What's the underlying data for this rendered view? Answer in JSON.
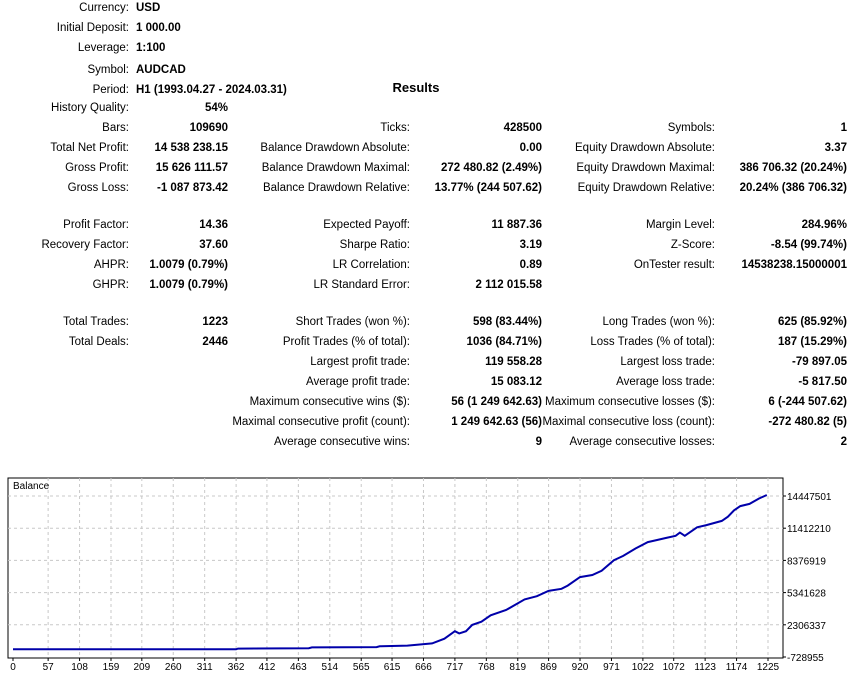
{
  "header": [
    {
      "label": "Currency:",
      "value": "USD"
    },
    {
      "label": "Initial Deposit:",
      "value": "1 000.00"
    },
    {
      "label": "Leverage:",
      "value": "1:100"
    },
    {
      "label": "Symbol:",
      "value": "AUDCAD"
    },
    {
      "label": "Period:",
      "value": "H1 (1993.04.27 - 2024.03.31)"
    }
  ],
  "results_title": "Results",
  "history_quality": {
    "label": "History Quality:",
    "value": "54%"
  },
  "rows": [
    [
      [
        "Bars:",
        "109690"
      ],
      [
        "Ticks:",
        "428500"
      ],
      [
        "Symbols:",
        "1"
      ]
    ],
    [
      [
        "Total Net Profit:",
        "14 538 238.15"
      ],
      [
        "Balance Drawdown Absolute:",
        "0.00"
      ],
      [
        "Equity Drawdown Absolute:",
        "3.37"
      ]
    ],
    [
      [
        "Gross Profit:",
        "15 626 111.57"
      ],
      [
        "Balance Drawdown Maximal:",
        "272 480.82 (2.49%)"
      ],
      [
        "Equity Drawdown Maximal:",
        "386 706.32 (20.24%)"
      ]
    ],
    [
      [
        "Gross Loss:",
        "-1 087 873.42"
      ],
      [
        "Balance Drawdown Relative:",
        "13.77% (244 507.62)"
      ],
      [
        "Equity Drawdown Relative:",
        "20.24% (386 706.32)"
      ]
    ],
    [
      [
        "Profit Factor:",
        "14.36"
      ],
      [
        "Expected Payoff:",
        "11 887.36"
      ],
      [
        "Margin Level:",
        "284.96%"
      ]
    ],
    [
      [
        "Recovery Factor:",
        "37.60"
      ],
      [
        "Sharpe Ratio:",
        "3.19"
      ],
      [
        "Z-Score:",
        "-8.54 (99.74%)"
      ]
    ],
    [
      [
        "AHPR:",
        "1.0079 (0.79%)"
      ],
      [
        "LR Correlation:",
        "0.89"
      ],
      [
        "OnTester result:",
        "14538238.15000001"
      ]
    ],
    [
      [
        "GHPR:",
        "1.0079 (0.79%)"
      ],
      [
        "LR Standard Error:",
        "2 112 015.58"
      ],
      [
        "",
        ""
      ]
    ],
    [
      [
        "Total Trades:",
        "1223"
      ],
      [
        "Short Trades (won %):",
        "598 (83.44%)"
      ],
      [
        "Long Trades (won %):",
        "625 (85.92%)"
      ]
    ],
    [
      [
        "Total Deals:",
        "2446"
      ],
      [
        "Profit Trades (% of total):",
        "1036 (84.71%)"
      ],
      [
        "Loss Trades (% of total):",
        "187 (15.29%)"
      ]
    ],
    [
      [
        "",
        ""
      ],
      [
        "Largest profit trade:",
        "119 558.28"
      ],
      [
        "Largest loss trade:",
        "-79 897.05"
      ]
    ],
    [
      [
        "",
        ""
      ],
      [
        "Average profit trade:",
        "15 083.12"
      ],
      [
        "Average loss trade:",
        "-5 817.50"
      ]
    ],
    [
      [
        "",
        ""
      ],
      [
        "Maximum consecutive wins ($):",
        "56 (1 249 642.63)"
      ],
      [
        "Maximum consecutive losses ($):",
        "6 (-244 507.62)"
      ]
    ],
    [
      [
        "",
        ""
      ],
      [
        "Maximal consecutive profit (count):",
        "1 249 642.63 (56)"
      ],
      [
        "Maximal consecutive loss (count):",
        "-272 480.82 (5)"
      ]
    ],
    [
      [
        "",
        ""
      ],
      [
        "Average consecutive wins:",
        "9"
      ],
      [
        "Average consecutive losses:",
        "2"
      ]
    ]
  ],
  "chart_data": {
    "type": "line",
    "title": "Balance",
    "line_color": "#0000AA",
    "grid": true,
    "x_ticks": [
      "0",
      "57",
      "108",
      "159",
      "209",
      "260",
      "311",
      "362",
      "412",
      "463",
      "514",
      "565",
      "615",
      "666",
      "717",
      "768",
      "819",
      "869",
      "920",
      "971",
      "1022",
      "1072",
      "1123",
      "1174",
      "1225"
    ],
    "y_ticks": [
      "14447501",
      "11412210",
      "8376919",
      "5341628",
      "2306337",
      "-728955"
    ],
    "xlim": [
      0,
      1225
    ],
    "ylim": [
      -728955,
      14447501
    ],
    "series": [
      {
        "x": [
          0,
          362,
          365,
          480,
          485,
          590,
          595,
          640,
          660,
          680,
          700,
          717,
          724,
          735,
          745,
          760,
          775,
          800,
          830,
          850,
          869,
          890,
          900,
          920,
          940,
          955,
          975,
          990,
          1010,
          1030,
          1045,
          1060,
          1075,
          1082,
          1090,
          1110,
          1125,
          1150,
          1160,
          1170,
          1180,
          1195,
          1210,
          1223
        ],
        "y": [
          1000,
          1000,
          60000,
          100000,
          180000,
          200000,
          280000,
          350000,
          450000,
          550000,
          1000000,
          1700000,
          1500000,
          1700000,
          2300000,
          2600000,
          3200000,
          3700000,
          4700000,
          5000000,
          5500000,
          5700000,
          6000000,
          6800000,
          7000000,
          7400000,
          8400000,
          8800000,
          9500000,
          10100000,
          10300000,
          10500000,
          10700000,
          11000000,
          10700000,
          11500000,
          11700000,
          12100000,
          12500000,
          13100000,
          13500000,
          13700000,
          14200000,
          14538238
        ]
      }
    ]
  }
}
